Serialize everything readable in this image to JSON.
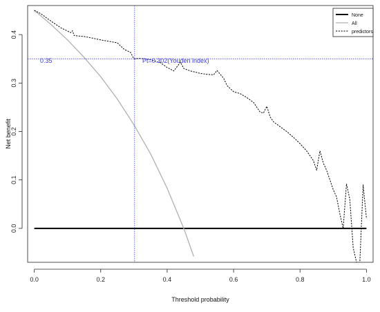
{
  "chart_data": {
    "type": "line",
    "title": "",
    "xlabel": "Threshold probability",
    "ylabel": "Net benefit",
    "xlim": [
      -0.02,
      1.02
    ],
    "ylim": [
      -0.07,
      0.46
    ],
    "xticks": [
      0.0,
      0.2,
      0.4,
      0.6,
      0.8,
      1.0
    ],
    "xtick_labels": [
      "0.0",
      "0.2",
      "0.4",
      "0.6",
      "0.8",
      "1.0"
    ],
    "yticks": [
      0.0,
      0.1,
      0.2,
      0.3,
      0.4
    ],
    "ytick_labels": [
      "0.0",
      "0.1",
      "0.2",
      "0.3",
      "0.4"
    ],
    "grid": false,
    "legend_position": "top-right",
    "reference_lines": {
      "horizontal": {
        "y": 0.35,
        "label": "0.35",
        "color": "#3b3bdb",
        "style": "dotted"
      },
      "vertical": {
        "x": 0.302,
        "label": "Pt=0.302(Youden index)",
        "color": "#3b3bdb",
        "style": "dotted"
      }
    },
    "series": [
      {
        "name": "None",
        "color": "#000000",
        "style": "solid-thick",
        "x": [
          0.0,
          1.0
        ],
        "y": [
          0.0,
          0.0
        ]
      },
      {
        "name": "All",
        "color": "#b0b0b0",
        "style": "solid",
        "prevalence": 0.45,
        "x": [
          0.0,
          0.05,
          0.1,
          0.15,
          0.2,
          0.25,
          0.3,
          0.35,
          0.4,
          0.45,
          0.48
        ],
        "y": [
          0.45,
          0.421,
          0.389,
          0.353,
          0.313,
          0.267,
          0.214,
          0.154,
          0.083,
          0.0,
          -0.058
        ]
      },
      {
        "name": "predictors",
        "color": "#000000",
        "style": "dashed",
        "x": [
          0.0,
          0.02,
          0.05,
          0.08,
          0.11,
          0.115,
          0.12,
          0.15,
          0.18,
          0.2,
          0.25,
          0.27,
          0.29,
          0.3,
          0.32,
          0.35,
          0.38,
          0.4,
          0.42,
          0.44,
          0.45,
          0.47,
          0.5,
          0.52,
          0.54,
          0.55,
          0.57,
          0.58,
          0.6,
          0.62,
          0.64,
          0.66,
          0.68,
          0.69,
          0.7,
          0.71,
          0.72,
          0.74,
          0.76,
          0.78,
          0.8,
          0.82,
          0.84,
          0.85,
          0.86,
          0.87,
          0.88,
          0.9,
          0.91,
          0.92,
          0.93,
          0.94,
          0.95,
          0.96,
          0.97,
          0.98,
          0.99,
          1.0
        ],
        "y": [
          0.45,
          0.443,
          0.428,
          0.414,
          0.404,
          0.408,
          0.398,
          0.396,
          0.392,
          0.389,
          0.383,
          0.37,
          0.363,
          0.35,
          0.351,
          0.348,
          0.342,
          0.332,
          0.325,
          0.343,
          0.33,
          0.325,
          0.32,
          0.318,
          0.317,
          0.326,
          0.31,
          0.295,
          0.282,
          0.278,
          0.27,
          0.26,
          0.24,
          0.238,
          0.252,
          0.23,
          0.22,
          0.21,
          0.2,
          0.188,
          0.175,
          0.16,
          0.14,
          0.12,
          0.16,
          0.135,
          0.12,
          0.08,
          0.065,
          0.03,
          0.0,
          0.092,
          0.06,
          -0.04,
          -0.07,
          -0.07,
          0.09,
          0.02
        ]
      }
    ]
  }
}
